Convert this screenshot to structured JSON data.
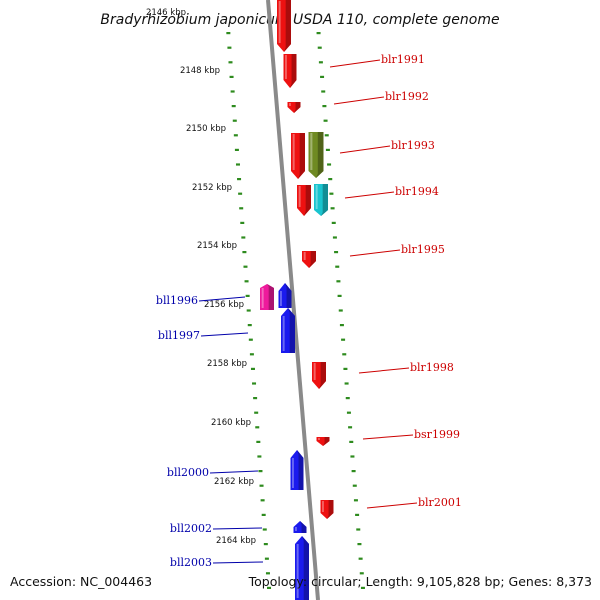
{
  "title": "Bradyrhizobium japonicum USDA 110, complete genome",
  "footer": {
    "accession": "Accession: NC_004463",
    "stats": "Topology: circular; Length: 9,105,828 bp; Genes: 8,373"
  },
  "colors": {
    "backbone": "#8a8a8a",
    "tick": "#2e8b1e",
    "forward_gene": "#ee1111",
    "forward_label": "#cc0000",
    "reverse_gene": "#1a1aee",
    "reverse_label": "#0000aa",
    "olive_gene": "#6f8a22",
    "cyan_gene": "#19c4cf",
    "magenta_gene": "#ee1a9c"
  },
  "kbp_labels": [
    "2146 kbp",
    "2148 kbp",
    "2150 kbp",
    "2152 kbp",
    "2154 kbp",
    "2156 kbp",
    "2158 kbp",
    "2160 kbp",
    "2162 kbp",
    "2164 kbp"
  ],
  "forward_genes": [
    {
      "label": "blr1991"
    },
    {
      "label": "blr1992"
    },
    {
      "label": "blr1993"
    },
    {
      "label": "blr1994"
    },
    {
      "label": "blr1995"
    },
    {
      "label": "blr1998"
    },
    {
      "label": "bsr1999"
    },
    {
      "label": "blr2001"
    }
  ],
  "reverse_genes": [
    {
      "label": "bll1996"
    },
    {
      "label": "bll1997"
    },
    {
      "label": "bll2000"
    },
    {
      "label": "bll2002"
    },
    {
      "label": "bll2003"
    }
  ]
}
